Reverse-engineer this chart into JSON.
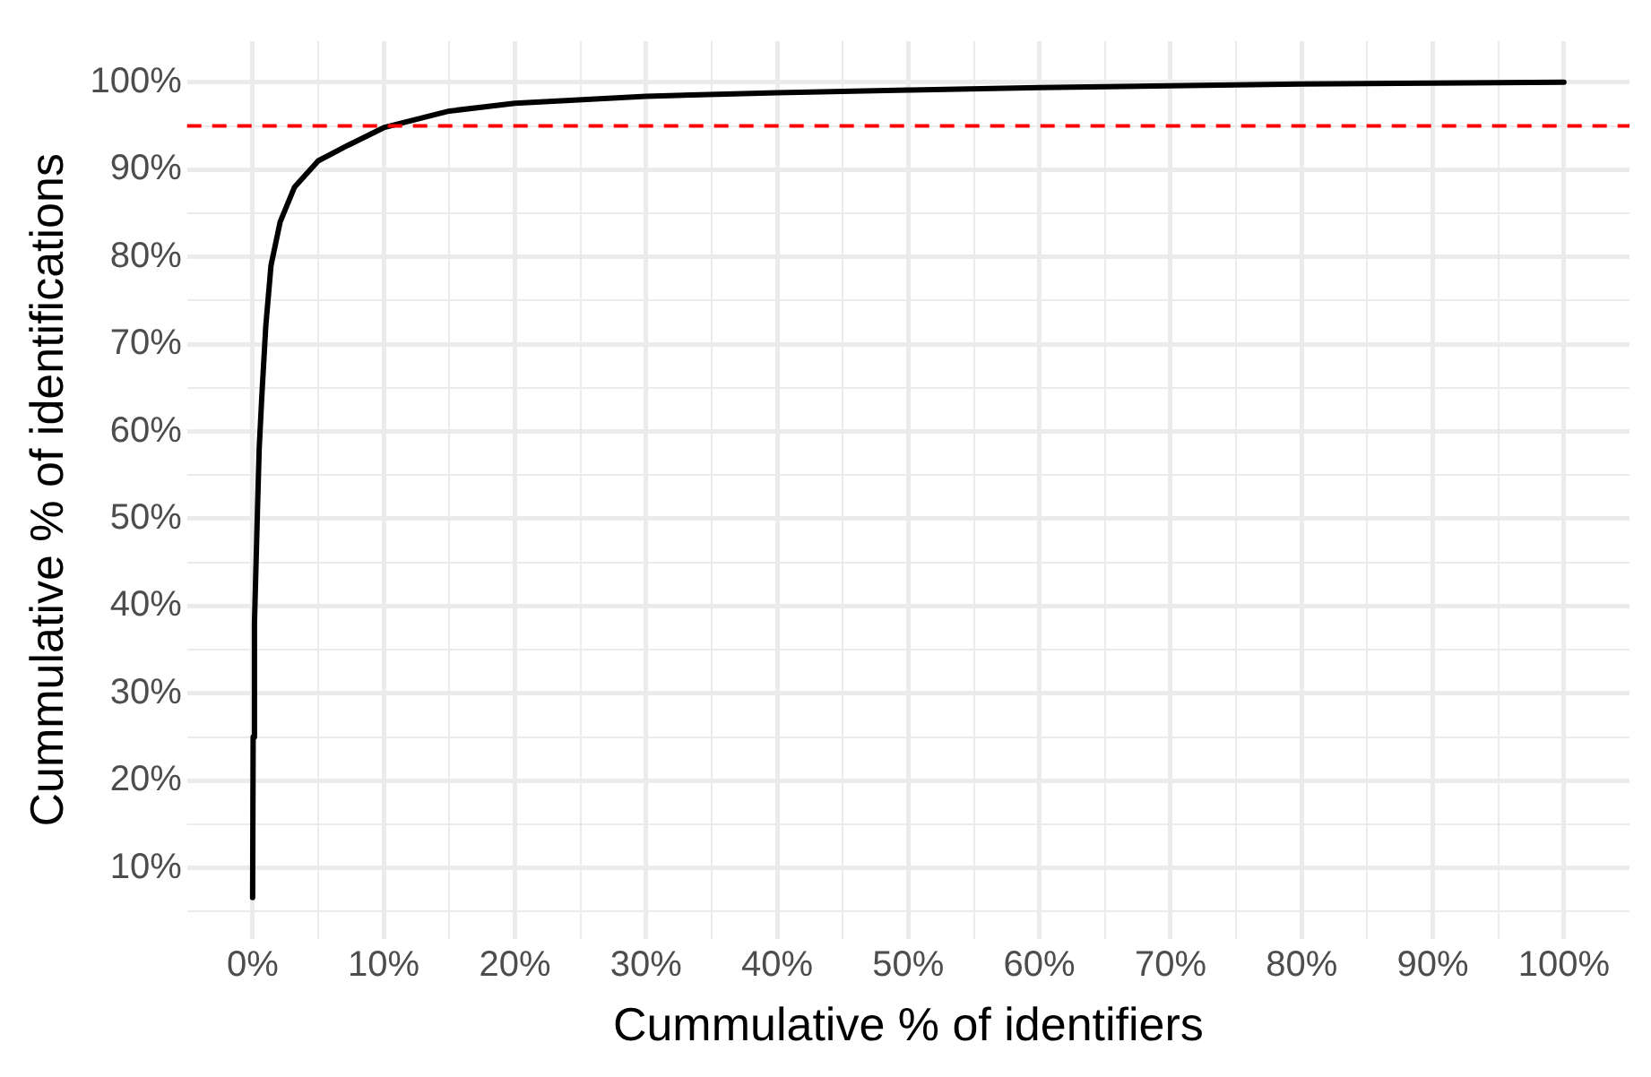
{
  "chart_data": {
    "type": "line",
    "xlabel": "Cummulative % of identifiers",
    "ylabel": "Cummulative % of identifications",
    "x": [
      0,
      0.04,
      0.14,
      0.37,
      0.5,
      0.7,
      1.0,
      1.4,
      2.1,
      3.2,
      5,
      7.3,
      10,
      15,
      20,
      30,
      40,
      50,
      60,
      70,
      80,
      90,
      100
    ],
    "series": [
      {
        "color": "#000000",
        "values": [
          6.6,
          25,
          38,
          51,
          58,
          64,
          72,
          79,
          84,
          88,
          91,
          92.8,
          94.8,
          96.7,
          97.6,
          98.4,
          98.8,
          99.1,
          99.4,
          99.6,
          99.8,
          99.9,
          100
        ]
      }
    ],
    "xlim": [
      -5,
      105
    ],
    "ylim": [
      1.9,
      104.7
    ],
    "xticks": [
      {
        "value": 0,
        "label": "0%"
      },
      {
        "value": 5,
        "label": null
      },
      {
        "value": 10,
        "label": "10%"
      },
      {
        "value": 15,
        "label": null
      },
      {
        "value": 20,
        "label": "20%"
      },
      {
        "value": 25,
        "label": null
      },
      {
        "value": 30,
        "label": "30%"
      },
      {
        "value": 35,
        "label": null
      },
      {
        "value": 40,
        "label": "40%"
      },
      {
        "value": 45,
        "label": null
      },
      {
        "value": 50,
        "label": "50%"
      },
      {
        "value": 55,
        "label": null
      },
      {
        "value": 60,
        "label": "60%"
      },
      {
        "value": 65,
        "label": null
      },
      {
        "value": 70,
        "label": "70%"
      },
      {
        "value": 75,
        "label": null
      },
      {
        "value": 80,
        "label": "80%"
      },
      {
        "value": 85,
        "label": null
      },
      {
        "value": 90,
        "label": "90%"
      },
      {
        "value": 95,
        "label": null
      },
      {
        "value": 100,
        "label": "100%"
      }
    ],
    "yticks": [
      {
        "value": 5,
        "label": null
      },
      {
        "value": 10,
        "label": "10%"
      },
      {
        "value": 15,
        "label": null
      },
      {
        "value": 20,
        "label": "20%"
      },
      {
        "value": 25,
        "label": null
      },
      {
        "value": 30,
        "label": "30%"
      },
      {
        "value": 35,
        "label": null
      },
      {
        "value": 40,
        "label": "40%"
      },
      {
        "value": 45,
        "label": null
      },
      {
        "value": 50,
        "label": "50%"
      },
      {
        "value": 55,
        "label": null
      },
      {
        "value": 60,
        "label": "60%"
      },
      {
        "value": 65,
        "label": null
      },
      {
        "value": 70,
        "label": "70%"
      },
      {
        "value": 75,
        "label": null
      },
      {
        "value": 80,
        "label": "80%"
      },
      {
        "value": 85,
        "label": null
      },
      {
        "value": 90,
        "label": "90%"
      },
      {
        "value": 95,
        "label": null
      },
      {
        "value": 100,
        "label": "100%"
      }
    ],
    "ref_lines": [
      {
        "axis": "y",
        "value": 95,
        "color": "#ff0000",
        "line_style": "dashed"
      }
    ],
    "grid": true,
    "line_style": "solid",
    "marker": "none"
  }
}
